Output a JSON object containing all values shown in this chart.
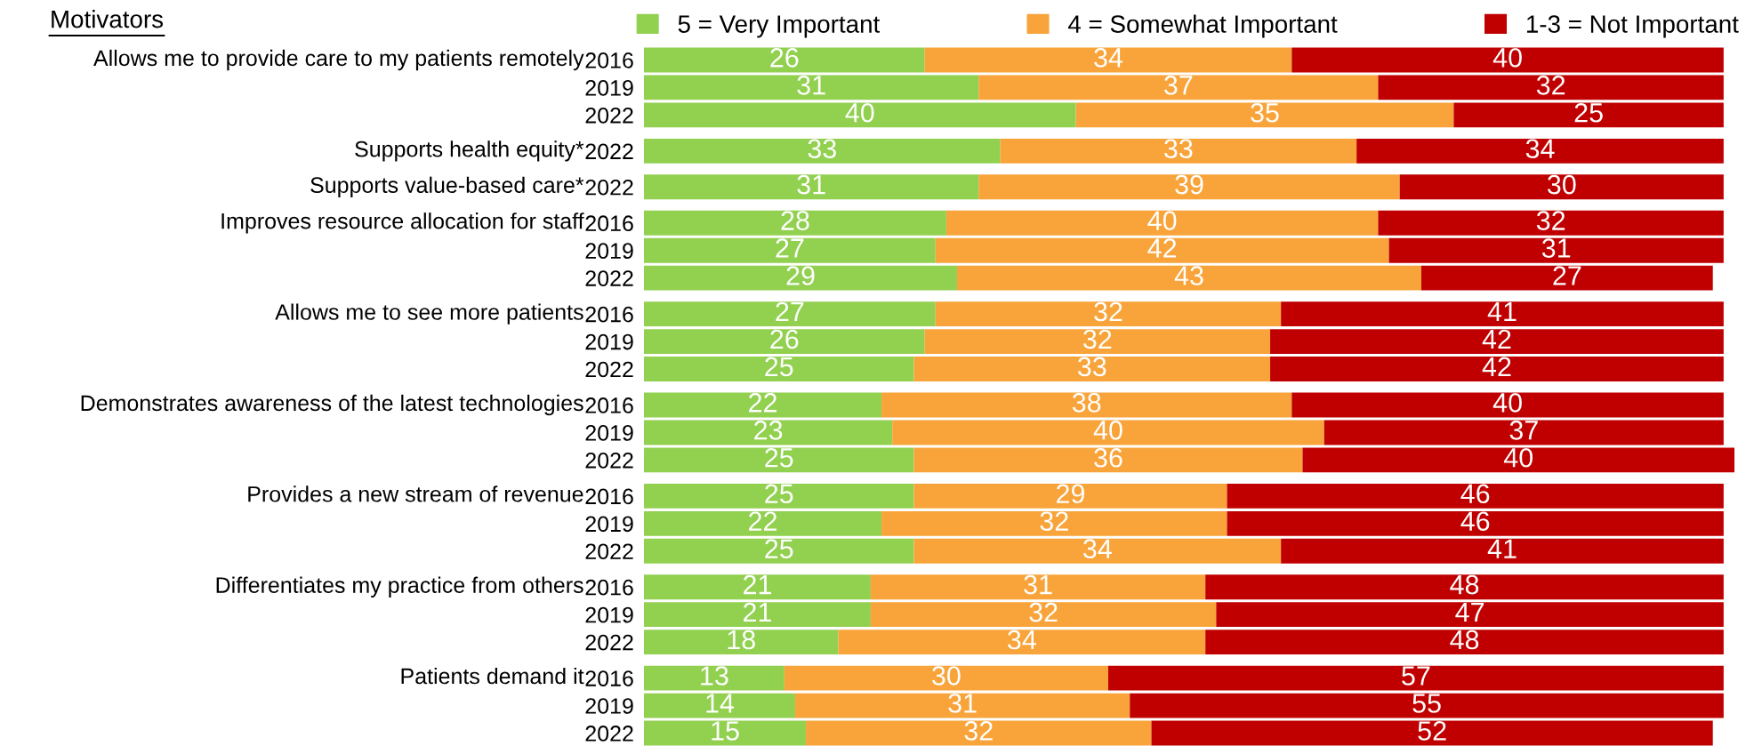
{
  "chart_data": [
    {
      "type": "bar",
      "orientation": "horizontal",
      "stacked": true,
      "data_labels": true,
      "legend": "top",
      "title": "Allows me to provide care to my patients remotely",
      "annotations": [
        "Motivators"
      ],
      "categories": [
        "2016",
        "2019",
        "2022"
      ],
      "series": [
        {
          "name": "5 = Very Important",
          "color": "#92d050",
          "values": [
            26,
            31,
            40
          ]
        },
        {
          "name": "4 = Somewhat Important",
          "color": "#f8a43a",
          "values": [
            34,
            37,
            35
          ]
        },
        {
          "name": "1-3 = Not Important",
          "color": "#c00000",
          "values": [
            40,
            32,
            25
          ]
        }
      ]
    },
    {
      "type": "bar",
      "orientation": "horizontal",
      "stacked": true,
      "data_labels": true,
      "title": "Supports health equity*",
      "categories": [
        "2022"
      ],
      "series": [
        {
          "color": "#92d050",
          "values": [
            33
          ]
        },
        {
          "color": "#f8a43a",
          "values": [
            33
          ]
        },
        {
          "color": "#c00000",
          "values": [
            34
          ]
        }
      ]
    },
    {
      "type": "bar",
      "orientation": "horizontal",
      "stacked": true,
      "data_labels": true,
      "title": "Supports value-based care*",
      "categories": [
        "2022"
      ],
      "series": [
        {
          "color": "#92d050",
          "values": [
            31
          ]
        },
        {
          "color": "#f8a43a",
          "values": [
            39
          ]
        },
        {
          "color": "#c00000",
          "values": [
            30
          ]
        }
      ]
    },
    {
      "type": "bar",
      "orientation": "horizontal",
      "stacked": true,
      "data_labels": true,
      "title": "Improves resource allocation for staff",
      "categories": [
        "2016",
        "2019",
        "2022"
      ],
      "series": [
        {
          "color": "#92d050",
          "values": [
            28,
            27,
            29
          ]
        },
        {
          "color": "#f8a43a",
          "values": [
            40,
            42,
            43
          ]
        },
        {
          "color": "#c00000",
          "values": [
            32,
            31,
            27
          ]
        }
      ]
    },
    {
      "type": "bar",
      "orientation": "horizontal",
      "stacked": true,
      "data_labels": true,
      "title": "Allows me to see more patients",
      "categories": [
        "2016",
        "2019",
        "2022"
      ],
      "series": [
        {
          "color": "#92d050",
          "values": [
            27,
            26,
            25
          ]
        },
        {
          "color": "#f8a43a",
          "values": [
            32,
            32,
            33
          ]
        },
        {
          "color": "#c00000",
          "values": [
            41,
            42,
            42
          ]
        }
      ]
    },
    {
      "type": "bar",
      "orientation": "horizontal",
      "stacked": true,
      "data_labels": true,
      "title": "Demonstrates awareness of the latest technologies",
      "categories": [
        "2016",
        "2019",
        "2022"
      ],
      "series": [
        {
          "color": "#92d050",
          "values": [
            22,
            23,
            25
          ]
        },
        {
          "color": "#f8a43a",
          "values": [
            38,
            40,
            36
          ]
        },
        {
          "color": "#c00000",
          "values": [
            40,
            37,
            40
          ]
        }
      ]
    },
    {
      "type": "bar",
      "orientation": "horizontal",
      "stacked": true,
      "data_labels": true,
      "title": "Provides a new stream of revenue",
      "categories": [
        "2016",
        "2019",
        "2022"
      ],
      "series": [
        {
          "color": "#92d050",
          "values": [
            25,
            22,
            25
          ]
        },
        {
          "color": "#f8a43a",
          "values": [
            29,
            32,
            34
          ]
        },
        {
          "color": "#c00000",
          "values": [
            46,
            46,
            41
          ]
        }
      ]
    },
    {
      "type": "bar",
      "orientation": "horizontal",
      "stacked": true,
      "data_labels": true,
      "title": "Differentiates my practice from others",
      "categories": [
        "2016",
        "2019",
        "2022"
      ],
      "series": [
        {
          "color": "#92d050",
          "values": [
            21,
            21,
            18
          ]
        },
        {
          "color": "#f8a43a",
          "values": [
            31,
            32,
            34
          ]
        },
        {
          "color": "#c00000",
          "values": [
            48,
            47,
            48
          ]
        }
      ]
    },
    {
      "type": "bar",
      "orientation": "horizontal",
      "stacked": true,
      "data_labels": true,
      "title": "Patients demand it",
      "categories": [
        "2016",
        "2019",
        "2022"
      ],
      "series": [
        {
          "color": "#92d050",
          "values": [
            13,
            14,
            15
          ]
        },
        {
          "color": "#f8a43a",
          "values": [
            30,
            31,
            32
          ]
        },
        {
          "color": "#c00000",
          "values": [
            57,
            55,
            52
          ]
        }
      ]
    }
  ]
}
